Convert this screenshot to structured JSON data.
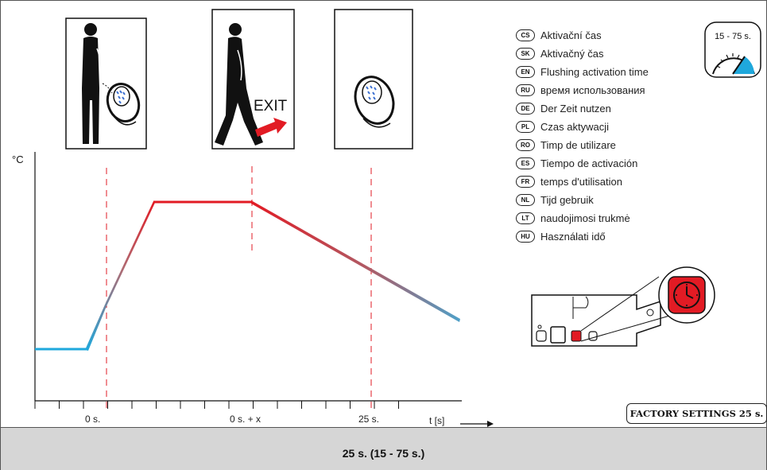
{
  "axis": {
    "y_unit": "°C",
    "x_unit": "t [s]"
  },
  "ticks": {
    "t0": "0 s.",
    "t1": "0 s. + x",
    "t2": "25 s."
  },
  "panel_exit_label": "EXIT",
  "timer_range": "15 - 75 s.",
  "languages": [
    {
      "code": "CS",
      "text": "Aktivační čas"
    },
    {
      "code": "SK",
      "text": "Aktivačný čas"
    },
    {
      "code": "EN",
      "text": "Flushing activation time"
    },
    {
      "code": "RU",
      "text": "время использования"
    },
    {
      "code": "DE",
      "text": "Der Zeit nutzen"
    },
    {
      "code": "PL",
      "text": "Czas aktywacji"
    },
    {
      "code": "RO",
      "text": "Timp de utilizare"
    },
    {
      "code": "ES",
      "text": "Tiempo de activación"
    },
    {
      "code": "FR",
      "text": "temps d'utilisation"
    },
    {
      "code": "NL",
      "text": "Tijd gebruik"
    },
    {
      "code": "LT",
      "text": "naudojimosi trukmė"
    },
    {
      "code": "HU",
      "text": "Használati idő"
    }
  ],
  "factory_settings": "FACTORY SETTINGS 25 s.",
  "footer": "25 s. (15 - 75 s.)",
  "colors": {
    "cold": "#1fa8dc",
    "hot": "#e21b24",
    "marker": "#e21b24"
  }
}
